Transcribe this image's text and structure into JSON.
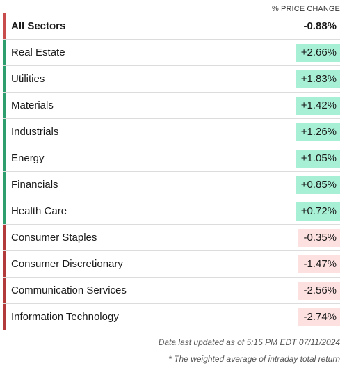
{
  "header": {
    "column_label": "% PRICE CHANGE"
  },
  "colors": {
    "positive_bar": "#2e9e6e",
    "negative_bar": "#b23a3a",
    "total_bar": "#c94c4c",
    "positive_bg": "#a7f0d6",
    "negative_bg": "#fde0e0"
  },
  "total": {
    "label": "All Sectors",
    "value": "-0.88%"
  },
  "sectors": [
    {
      "label": "Real Estate",
      "value": "+2.66%",
      "direction": "pos"
    },
    {
      "label": "Utilities",
      "value": "+1.83%",
      "direction": "pos"
    },
    {
      "label": "Materials",
      "value": "+1.42%",
      "direction": "pos"
    },
    {
      "label": "Industrials",
      "value": "+1.26%",
      "direction": "pos"
    },
    {
      "label": "Energy",
      "value": "+1.05%",
      "direction": "pos"
    },
    {
      "label": "Financials",
      "value": "+0.85%",
      "direction": "pos"
    },
    {
      "label": "Health Care",
      "value": "+0.72%",
      "direction": "pos"
    },
    {
      "label": "Consumer Staples",
      "value": "-0.35%",
      "direction": "neg"
    },
    {
      "label": "Consumer Discretionary",
      "value": "-1.47%",
      "direction": "neg"
    },
    {
      "label": "Communication Services",
      "value": "-2.56%",
      "direction": "neg"
    },
    {
      "label": "Information Technology",
      "value": "-2.74%",
      "direction": "neg"
    }
  ],
  "footer": {
    "updated": "Data last updated as of 5:15 PM EDT 07/11/2024",
    "note": "* The weighted average of intraday total return"
  }
}
